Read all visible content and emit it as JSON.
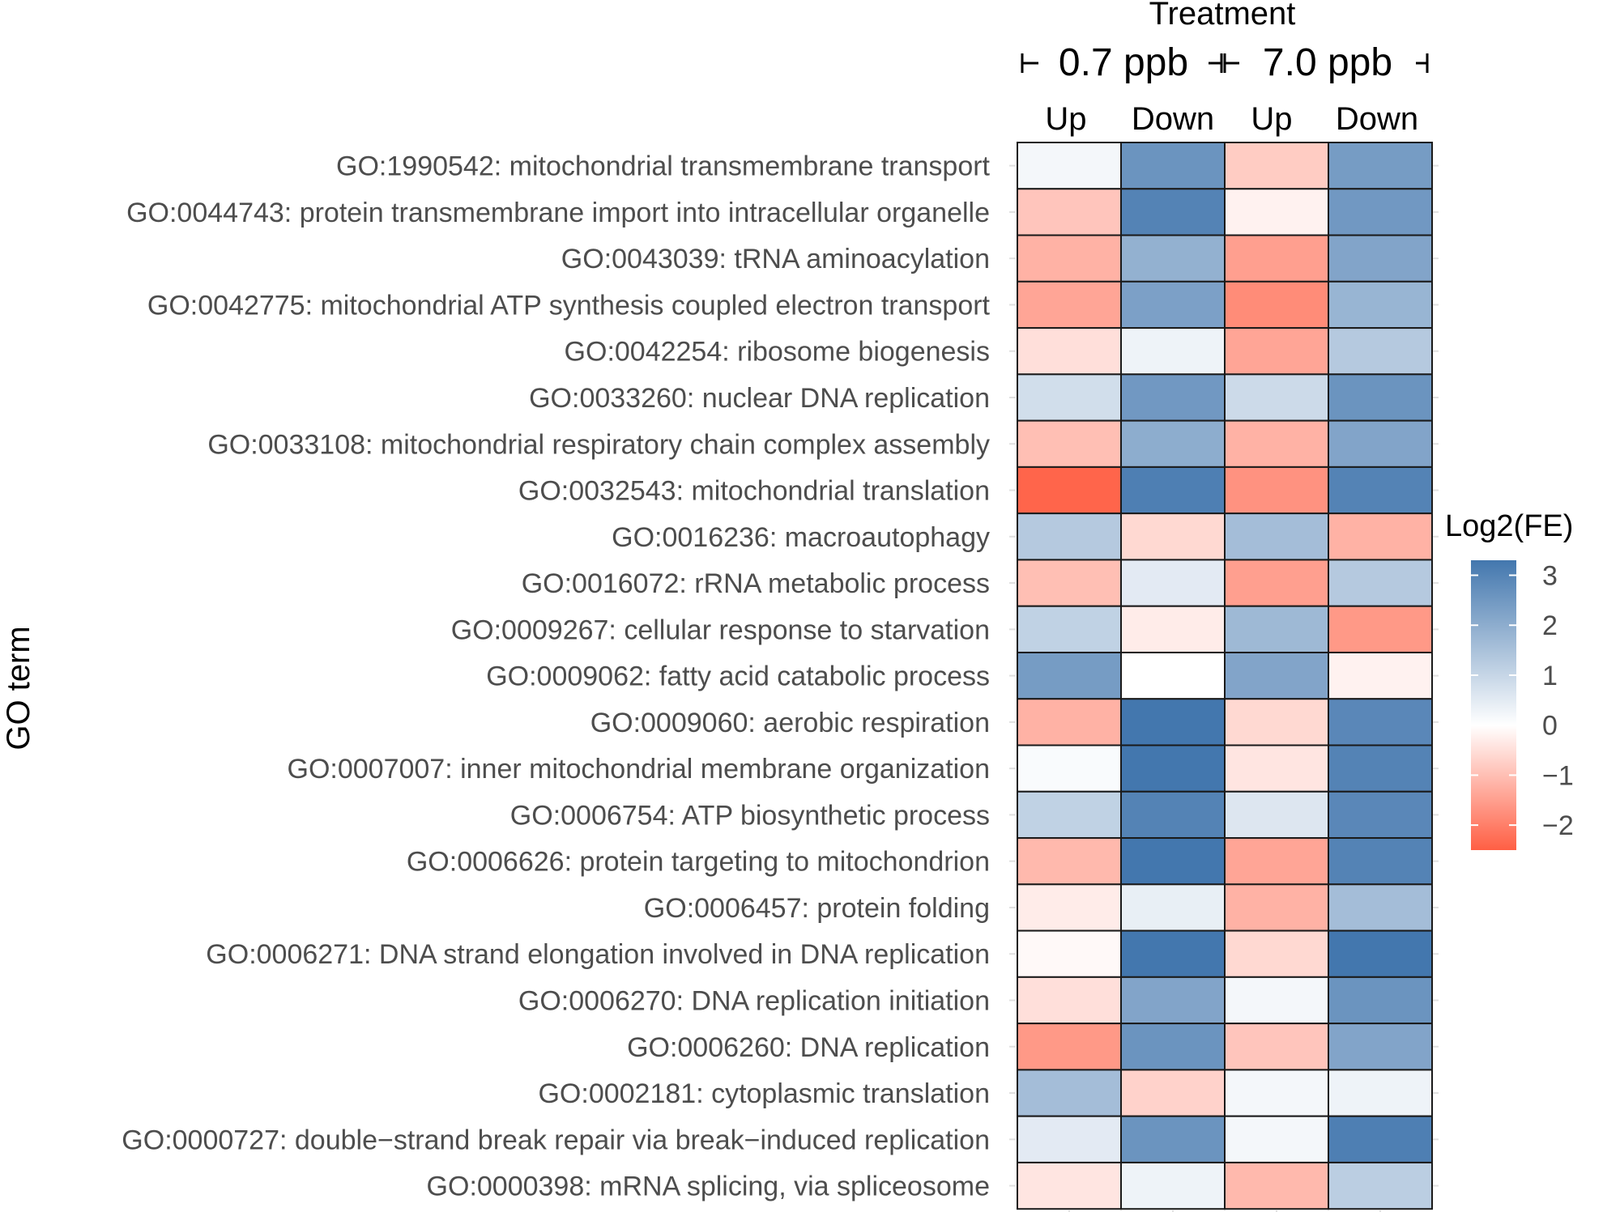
{
  "chart_data": {
    "type": "heatmap",
    "ylabel": "GO term",
    "header_title": "Treatment",
    "groups": [
      {
        "label": "0.7 ppb",
        "columns": [
          "Up",
          "Down"
        ]
      },
      {
        "label": "7.0 ppb",
        "columns": [
          "Up",
          "Down"
        ]
      }
    ],
    "legend": {
      "title": "Log2(FE)",
      "ticks": [
        3,
        2,
        1,
        0,
        -1,
        -2
      ],
      "tick_labels": [
        "3",
        "2",
        "1",
        "0",
        "−1",
        "−2"
      ],
      "range": [
        -2.5,
        3.3
      ],
      "low_color": "#ff5f44",
      "mid_color": "#ffffff",
      "high_color": "#4377ae"
    },
    "rows": [
      "GO:1990542: mitochondrial transmembrane transport",
      "GO:0044743: protein transmembrane import into intracellular organelle",
      "GO:0043039: tRNA aminoacylation",
      "GO:0042775: mitochondrial ATP synthesis coupled electron transport",
      "GO:0042254: ribosome biogenesis",
      "GO:0033260: nuclear DNA replication",
      "GO:0033108: mitochondrial respiratory chain complex assembly",
      "GO:0032543: mitochondrial translation",
      "GO:0016236: macroautophagy",
      "GO:0016072: rRNA metabolic process",
      "GO:0009267: cellular response to starvation",
      "GO:0009062: fatty acid catabolic process",
      "GO:0009060: aerobic respiration",
      "GO:0007007: inner mitochondrial membrane organization",
      "GO:0006754: ATP biosynthetic process",
      "GO:0006626: protein targeting to mitochondrion",
      "GO:0006457: protein folding",
      "GO:0006271: DNA strand elongation involved in DNA replication",
      "GO:0006270: DNA replication initiation",
      "GO:0006260: DNA replication",
      "GO:0002181: cytoplasmic translation",
      "GO:0000727: double−strand break repair via break−induced replication",
      "GO:0000398: mRNA splicing, via spliceosome"
    ],
    "values": [
      [
        0.2,
        2.6,
        -0.8,
        2.4
      ],
      [
        -0.9,
        3.0,
        -0.2,
        2.5
      ],
      [
        -1.2,
        1.9,
        -1.5,
        2.2
      ],
      [
        -1.4,
        2.3,
        -1.8,
        1.8
      ],
      [
        -0.5,
        0.3,
        -1.4,
        1.3
      ],
      [
        0.8,
        2.5,
        0.9,
        2.6
      ],
      [
        -1.0,
        2.0,
        -1.2,
        2.2
      ],
      [
        -2.4,
        3.1,
        -1.7,
        3.0
      ],
      [
        1.3,
        -0.6,
        1.6,
        -1.2
      ],
      [
        -1.0,
        0.5,
        -1.5,
        1.3
      ],
      [
        1.1,
        -0.3,
        1.7,
        -1.6
      ],
      [
        2.4,
        0.0,
        2.2,
        -0.2
      ],
      [
        -1.2,
        3.3,
        -0.6,
        2.9
      ],
      [
        0.1,
        3.3,
        -0.4,
        3.0
      ],
      [
        1.1,
        3.0,
        0.6,
        2.9
      ],
      [
        -1.1,
        3.3,
        -1.4,
        3.0
      ],
      [
        -0.3,
        0.4,
        -1.2,
        1.6
      ],
      [
        -0.1,
        3.3,
        -0.6,
        3.3
      ],
      [
        -0.5,
        2.2,
        0.2,
        2.6
      ],
      [
        -1.6,
        2.6,
        -0.9,
        2.2
      ],
      [
        1.6,
        -0.7,
        0.2,
        0.3
      ],
      [
        0.5,
        2.6,
        0.2,
        3.1
      ],
      [
        -0.4,
        0.3,
        -1.1,
        1.2
      ]
    ]
  }
}
